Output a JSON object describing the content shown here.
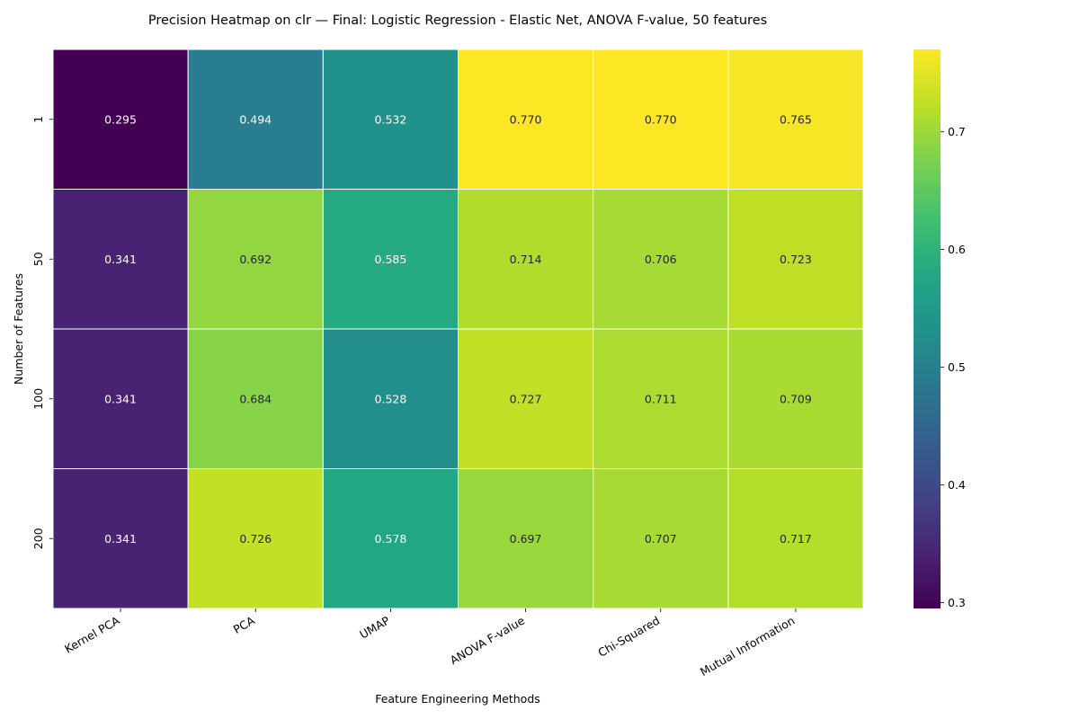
{
  "chart_data": {
    "type": "heatmap",
    "title": "Precision Heatmap on clr — Final: Logistic Regression - Elastic Net, ANOVA F-value, 50 features",
    "xlabel": "Feature Engineering Methods",
    "ylabel": "Number of Features",
    "x_categories": [
      "Kernel PCA",
      "PCA",
      "UMAP",
      "ANOVA F-value",
      "Chi-Squared",
      "Mutual Information"
    ],
    "y_categories": [
      "1",
      "50",
      "100",
      "200"
    ],
    "values": [
      [
        0.295,
        0.494,
        0.532,
        0.77,
        0.77,
        0.765
      ],
      [
        0.341,
        0.692,
        0.585,
        0.714,
        0.706,
        0.723
      ],
      [
        0.341,
        0.684,
        0.528,
        0.727,
        0.711,
        0.709
      ],
      [
        0.341,
        0.726,
        0.578,
        0.697,
        0.707,
        0.717
      ]
    ],
    "cell_labels": [
      [
        "0.295",
        "0.494",
        "0.532",
        "0.770",
        "0.770",
        "0.765"
      ],
      [
        "0.341",
        "0.692",
        "0.585",
        "0.714",
        "0.706",
        "0.723"
      ],
      [
        "0.341",
        "0.684",
        "0.528",
        "0.727",
        "0.711",
        "0.709"
      ],
      [
        "0.341",
        "0.726",
        "0.578",
        "0.697",
        "0.707",
        "0.717"
      ]
    ],
    "colormap": "viridis",
    "vmin": 0.295,
    "vmax": 0.77,
    "colorbar_ticks": [
      0.3,
      0.4,
      0.5,
      0.6,
      0.7
    ],
    "colorbar_tick_labels": [
      "0.3",
      "0.4",
      "0.5",
      "0.6",
      "0.7"
    ],
    "legend_placement": "right",
    "grid": false,
    "cell_border_color": "#ffffff"
  }
}
